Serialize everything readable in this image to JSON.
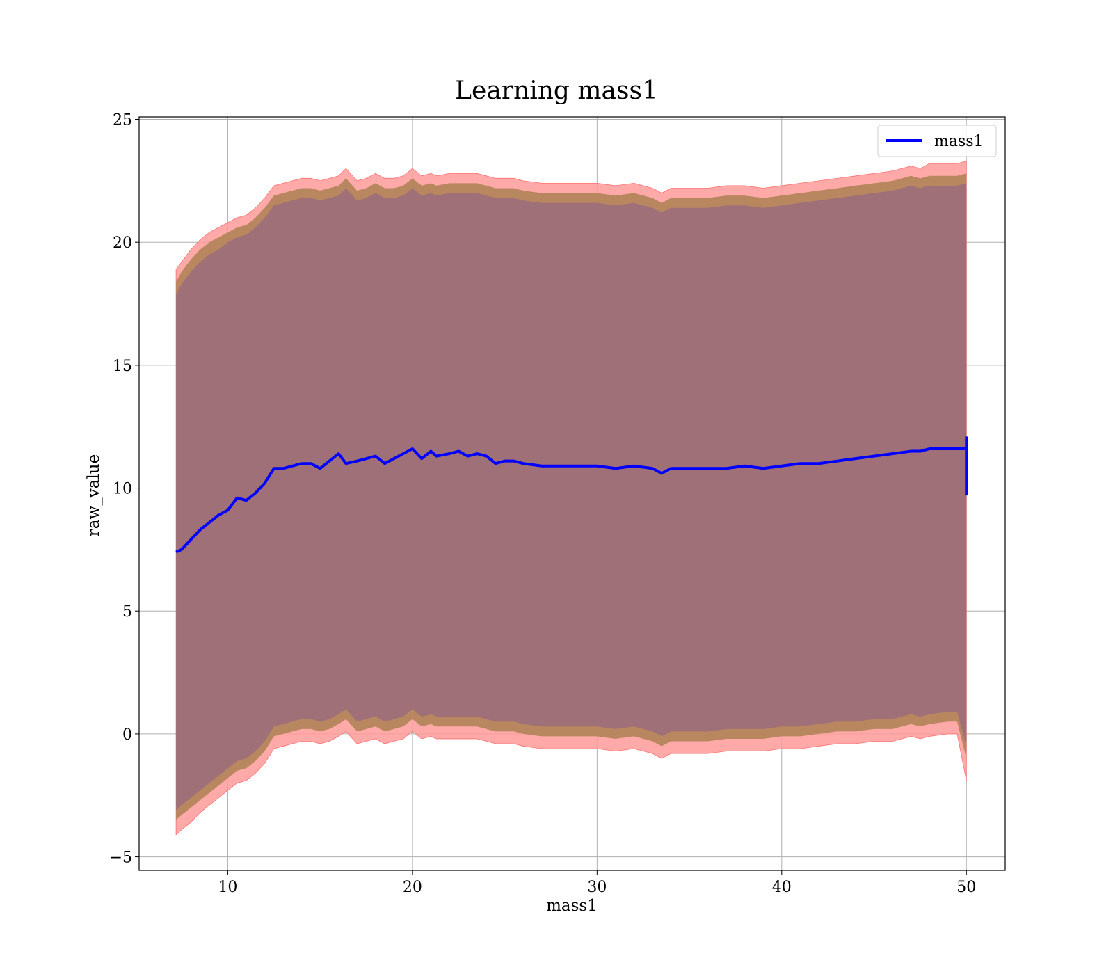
{
  "chart_data": {
    "type": "line",
    "title": "Learning mass1",
    "xlabel": "mass1",
    "ylabel": "raw_value",
    "xlim": [
      5.2,
      52.1
    ],
    "ylim": [
      -5.55,
      25.1
    ],
    "xticks": [
      10,
      20,
      30,
      40,
      50
    ],
    "yticks": [
      -5,
      0,
      5,
      10,
      15,
      20,
      25
    ],
    "xtick_labels": [
      "10",
      "20",
      "30",
      "40",
      "50"
    ],
    "ytick_labels": [
      "−5",
      "0",
      "5",
      "10",
      "15",
      "20",
      "25"
    ],
    "grid": true,
    "legend": {
      "position": "top-right",
      "entries": [
        "mass1"
      ]
    },
    "colors": {
      "line": "#0000ff",
      "band_outer": "#ff9a9a",
      "band_middle": "#b9875f",
      "band_inner": "#a07078"
    },
    "series": [
      {
        "name": "mass1",
        "x": [
          7.2,
          7.5,
          8.0,
          8.5,
          9.0,
          9.5,
          10.0,
          10.5,
          11.0,
          11.5,
          12.0,
          12.5,
          13.0,
          13.5,
          14.0,
          14.5,
          15.0,
          15.5,
          16.0,
          16.4,
          17.0,
          17.5,
          18.0,
          18.5,
          19.0,
          19.5,
          20.0,
          20.5,
          21.0,
          21.3,
          22.0,
          22.5,
          23.0,
          23.5,
          24.0,
          24.5,
          25.0,
          25.5,
          26.0,
          27.0,
          28.0,
          29.0,
          30.0,
          31.0,
          32.0,
          33.0,
          33.5,
          34.0,
          35.0,
          36.0,
          37.0,
          38.0,
          39.0,
          40.0,
          41.0,
          42.0,
          43.0,
          44.0,
          45.0,
          46.0,
          47.0,
          47.5,
          48.0,
          49.0,
          49.5,
          50.0
        ],
        "y": [
          7.4,
          7.5,
          7.9,
          8.3,
          8.6,
          8.9,
          9.1,
          9.6,
          9.5,
          9.8,
          10.2,
          10.8,
          10.8,
          10.9,
          11.0,
          11.0,
          10.8,
          11.1,
          11.4,
          11.0,
          11.1,
          11.2,
          11.3,
          11.0,
          11.2,
          11.4,
          11.6,
          11.2,
          11.5,
          11.3,
          11.4,
          11.5,
          11.3,
          11.4,
          11.3,
          11.0,
          11.1,
          11.1,
          11.0,
          10.9,
          10.9,
          10.9,
          10.9,
          10.8,
          10.9,
          10.8,
          10.6,
          10.8,
          10.8,
          10.8,
          10.8,
          10.9,
          10.8,
          10.9,
          11.0,
          11.0,
          11.1,
          11.2,
          11.3,
          11.4,
          11.5,
          11.5,
          11.6,
          11.6,
          11.6,
          11.6
        ],
        "band_outer_upper": [
          18.9,
          19.2,
          19.7,
          20.1,
          20.4,
          20.6,
          20.8,
          21.0,
          21.1,
          21.4,
          21.8,
          22.3,
          22.4,
          22.5,
          22.6,
          22.6,
          22.5,
          22.6,
          22.7,
          23.0,
          22.5,
          22.6,
          22.8,
          22.6,
          22.6,
          22.7,
          23.0,
          22.7,
          22.8,
          22.7,
          22.8,
          22.8,
          22.8,
          22.8,
          22.7,
          22.6,
          22.6,
          22.6,
          22.5,
          22.4,
          22.4,
          22.4,
          22.4,
          22.3,
          22.4,
          22.2,
          22.0,
          22.2,
          22.2,
          22.2,
          22.3,
          22.3,
          22.2,
          22.3,
          22.4,
          22.5,
          22.6,
          22.7,
          22.8,
          22.9,
          23.1,
          23.0,
          23.2,
          23.2,
          23.2,
          23.3
        ],
        "band_outer_lower": [
          -4.1,
          -3.9,
          -3.6,
          -3.2,
          -2.9,
          -2.6,
          -2.3,
          -2.0,
          -1.9,
          -1.6,
          -1.2,
          -0.6,
          -0.5,
          -0.4,
          -0.3,
          -0.3,
          -0.4,
          -0.3,
          -0.1,
          0.1,
          -0.4,
          -0.3,
          -0.2,
          -0.4,
          -0.3,
          -0.2,
          0.1,
          -0.2,
          -0.1,
          -0.2,
          -0.2,
          -0.2,
          -0.2,
          -0.2,
          -0.3,
          -0.4,
          -0.4,
          -0.4,
          -0.5,
          -0.6,
          -0.6,
          -0.6,
          -0.6,
          -0.7,
          -0.6,
          -0.8,
          -1.0,
          -0.8,
          -0.8,
          -0.8,
          -0.7,
          -0.7,
          -0.7,
          -0.6,
          -0.6,
          -0.5,
          -0.4,
          -0.4,
          -0.3,
          -0.3,
          -0.1,
          -0.2,
          -0.1,
          0.0,
          0.0,
          -1.9
        ],
        "band_middle_upper": [
          18.4,
          18.8,
          19.3,
          19.7,
          20.0,
          20.2,
          20.4,
          20.6,
          20.7,
          21.0,
          21.4,
          21.9,
          22.0,
          22.1,
          22.2,
          22.2,
          22.1,
          22.2,
          22.3,
          22.6,
          22.1,
          22.2,
          22.4,
          22.2,
          22.2,
          22.3,
          22.6,
          22.3,
          22.4,
          22.3,
          22.4,
          22.4,
          22.4,
          22.4,
          22.3,
          22.2,
          22.2,
          22.2,
          22.1,
          22.0,
          22.0,
          22.0,
          22.0,
          21.9,
          22.0,
          21.8,
          21.6,
          21.8,
          21.8,
          21.8,
          21.9,
          21.9,
          21.8,
          21.9,
          22.0,
          22.1,
          22.2,
          22.3,
          22.4,
          22.5,
          22.7,
          22.6,
          22.7,
          22.7,
          22.7,
          22.8
        ],
        "band_middle_lower": [
          -3.5,
          -3.3,
          -3.0,
          -2.7,
          -2.4,
          -2.1,
          -1.8,
          -1.5,
          -1.4,
          -1.1,
          -0.7,
          -0.1,
          0.0,
          0.1,
          0.2,
          0.2,
          0.1,
          0.2,
          0.4,
          0.6,
          0.1,
          0.2,
          0.3,
          0.1,
          0.2,
          0.3,
          0.6,
          0.3,
          0.4,
          0.3,
          0.3,
          0.3,
          0.3,
          0.3,
          0.2,
          0.1,
          0.1,
          0.1,
          0.0,
          -0.1,
          -0.1,
          -0.1,
          -0.1,
          -0.2,
          -0.1,
          -0.3,
          -0.5,
          -0.3,
          -0.3,
          -0.3,
          -0.2,
          -0.2,
          -0.2,
          -0.1,
          -0.1,
          0.0,
          0.1,
          0.1,
          0.2,
          0.2,
          0.4,
          0.3,
          0.4,
          0.5,
          0.5,
          -1.0
        ],
        "band_inner_upper": [
          17.9,
          18.3,
          18.8,
          19.2,
          19.5,
          19.7,
          20.0,
          20.2,
          20.3,
          20.6,
          21.0,
          21.5,
          21.6,
          21.7,
          21.8,
          21.8,
          21.7,
          21.8,
          21.9,
          22.2,
          21.7,
          21.8,
          22.0,
          21.8,
          21.8,
          21.9,
          22.2,
          21.9,
          22.0,
          21.9,
          22.0,
          22.0,
          22.0,
          22.0,
          21.9,
          21.8,
          21.8,
          21.8,
          21.7,
          21.6,
          21.6,
          21.6,
          21.6,
          21.5,
          21.6,
          21.4,
          21.2,
          21.4,
          21.4,
          21.4,
          21.5,
          21.5,
          21.4,
          21.5,
          21.6,
          21.7,
          21.8,
          21.9,
          22.0,
          22.1,
          22.3,
          22.2,
          22.3,
          22.3,
          22.3,
          22.4
        ],
        "band_inner_lower": [
          -3.1,
          -2.9,
          -2.6,
          -2.3,
          -2.0,
          -1.7,
          -1.4,
          -1.1,
          -1.0,
          -0.7,
          -0.3,
          0.3,
          0.4,
          0.5,
          0.6,
          0.6,
          0.5,
          0.6,
          0.8,
          1.0,
          0.5,
          0.6,
          0.7,
          0.5,
          0.6,
          0.7,
          1.0,
          0.7,
          0.8,
          0.7,
          0.7,
          0.7,
          0.7,
          0.7,
          0.6,
          0.5,
          0.5,
          0.5,
          0.4,
          0.3,
          0.3,
          0.3,
          0.3,
          0.2,
          0.3,
          0.1,
          -0.1,
          0.1,
          0.1,
          0.1,
          0.2,
          0.2,
          0.2,
          0.3,
          0.3,
          0.4,
          0.5,
          0.5,
          0.6,
          0.6,
          0.8,
          0.7,
          0.8,
          0.9,
          0.9,
          -0.5
        ]
      }
    ]
  }
}
